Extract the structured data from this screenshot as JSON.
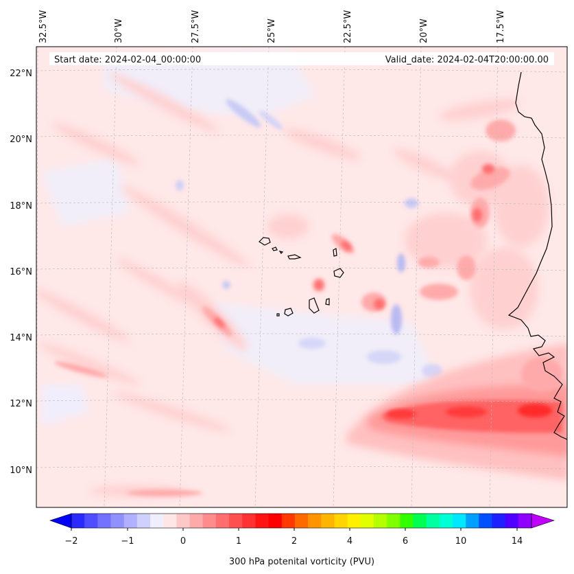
{
  "map": {
    "start_date": "Start date: 2024-02-04_00:00:00",
    "valid_date": "Valid_date: 2024-02-04T20:00:00.00",
    "lon_labels": [
      "32.5°W",
      "30°W",
      "27.5°W",
      "25°W",
      "22.5°W",
      "20°W",
      "17.5°W"
    ],
    "lat_labels": [
      "22°N",
      "20°N",
      "18°N",
      "16°N",
      "14°N",
      "12°N",
      "10°N"
    ],
    "colorbar": {
      "label": "300 hPa potenital vorticity (PVU)",
      "ticks": [
        "−2",
        "−1",
        "0",
        "1",
        "2",
        "4",
        "6",
        "10",
        "14"
      ],
      "colors": [
        "#0000ff",
        "#2a2aff",
        "#4f4fff",
        "#7272ff",
        "#9090ff",
        "#b0b0ff",
        "#d0d0ff",
        "#eeeeff",
        "#ffe6e6",
        "#ffc8c8",
        "#ffaaaa",
        "#ff8c8c",
        "#ff6e6e",
        "#ff5050",
        "#ff3232",
        "#ff1414",
        "#ff0000",
        "#ff3a00",
        "#ff6a00",
        "#ff9400",
        "#ffb400",
        "#ffd400",
        "#fff000",
        "#e2ff00",
        "#b4ff00",
        "#80ff00",
        "#30ff00",
        "#00ff50",
        "#00ffa0",
        "#00ffd4",
        "#00e8ff",
        "#00a0ff",
        "#0050ff",
        "#2020ff",
        "#5000ff",
        "#9000ff",
        "#c000ff"
      ]
    }
  }
}
